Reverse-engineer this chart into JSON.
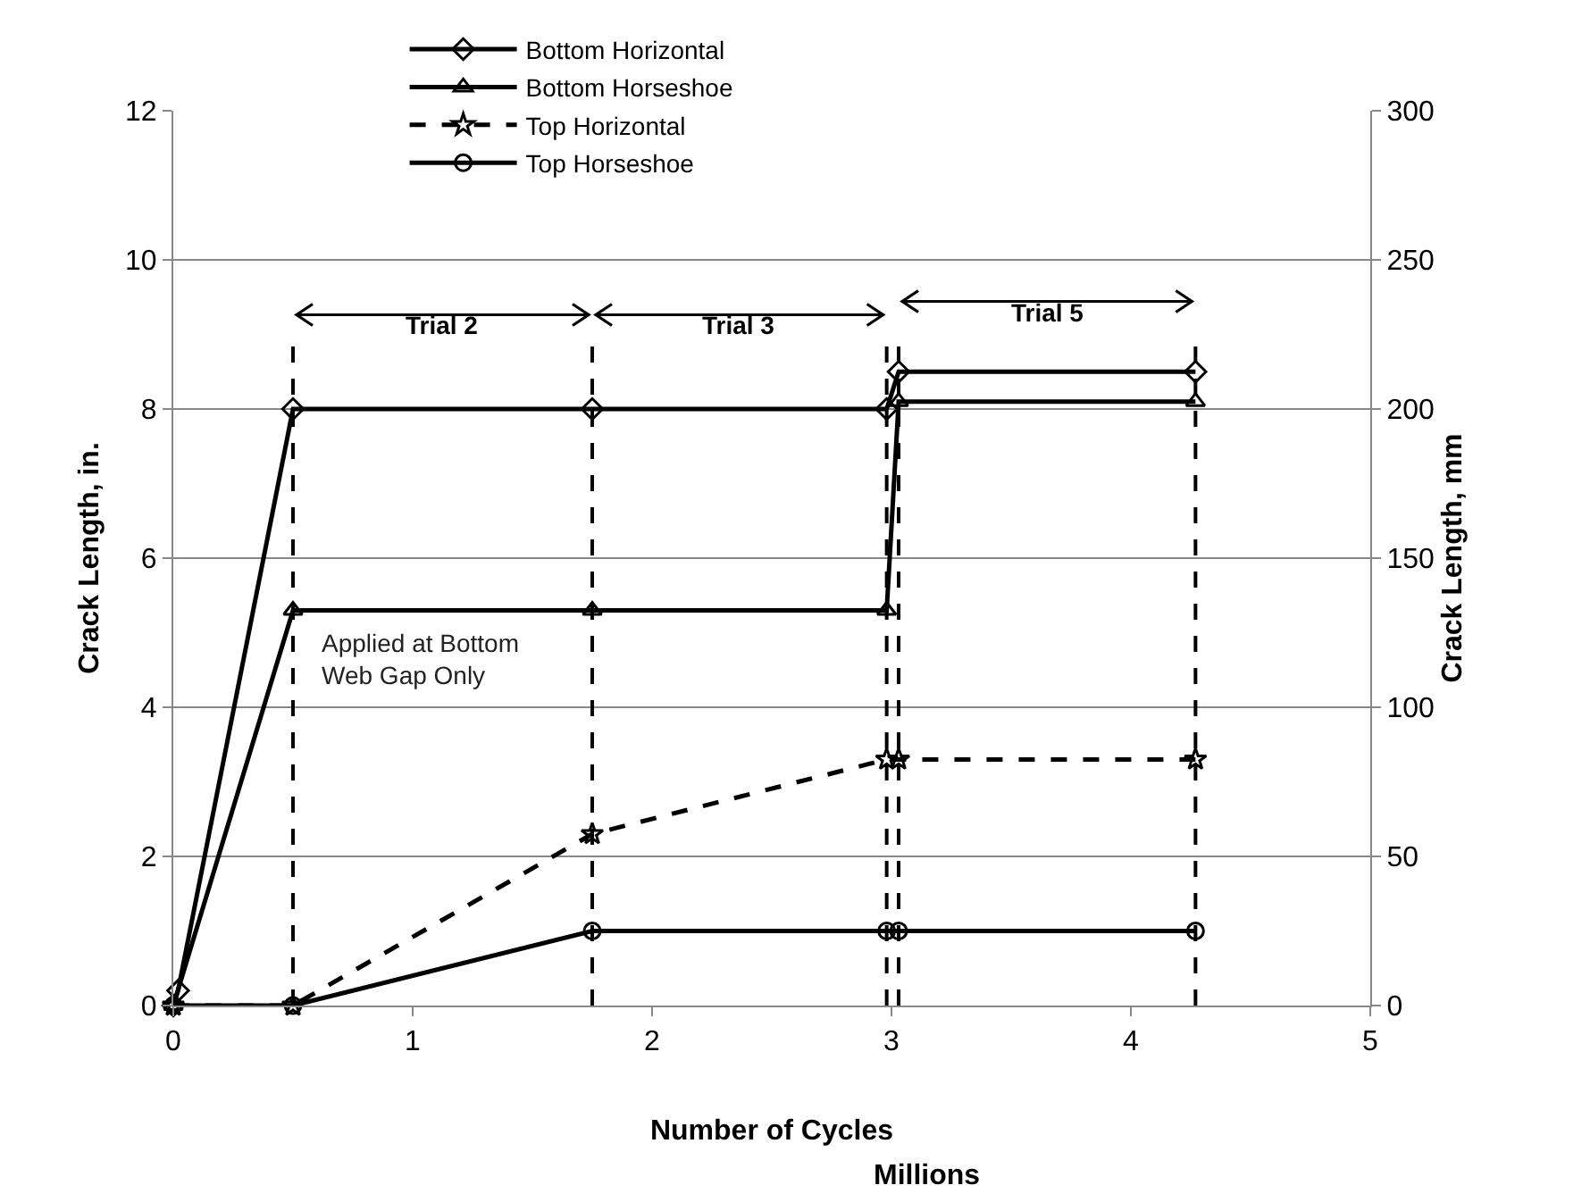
{
  "chart_data": {
    "type": "line",
    "xlabel": "Number of Cycles",
    "ylabel": "Crack Length, in.",
    "y2label": "Crack Length, mm",
    "xlim": [
      0,
      5
    ],
    "xticks": [
      0,
      1,
      2,
      3,
      4,
      5
    ],
    "ylim": [
      0,
      12
    ],
    "yticks": [
      0,
      2,
      4,
      6,
      8,
      10,
      12
    ],
    "y2lim": [
      0,
      300
    ],
    "y2ticks": [
      0,
      50,
      100,
      150,
      200,
      250,
      300
    ],
    "grid": "y",
    "legend": "top",
    "series": [
      {
        "name": "Bottom Horizontal",
        "color": "#000000",
        "marker": "diamond",
        "line_style": "solid",
        "x": [
          0,
          0.02,
          0.5,
          1.75,
          2.98,
          3.03,
          4.27
        ],
        "values": [
          0,
          0.2,
          8,
          8,
          8,
          8.5,
          8.5
        ]
      },
      {
        "name": "Bottom Horseshoe",
        "color": "#000000",
        "marker": "triangle",
        "line_style": "solid",
        "x": [
          0,
          0.5,
          1.75,
          2.98,
          3.03,
          4.27
        ],
        "values": [
          0,
          5.3,
          5.3,
          5.3,
          8.1,
          8.1
        ]
      },
      {
        "name": "Top Horizontal",
        "color": "#000000",
        "marker": "star",
        "line_style": "dashed",
        "x": [
          0,
          0.5,
          1.75,
          2.98,
          3.03,
          4.27
        ],
        "values": [
          0,
          0,
          2.3,
          3.3,
          3.3,
          3.3
        ]
      },
      {
        "name": "Top Horseshoe",
        "color": "#000000",
        "marker": "circle",
        "line_style": "solid",
        "x": [
          0,
          0.5,
          1.75,
          2.98,
          3.03,
          4.27
        ],
        "values": [
          0,
          0,
          1,
          1,
          1,
          1
        ]
      }
    ],
    "ref_lines": [
      {
        "axis": "x",
        "value": 0.5,
        "color": "#000000",
        "line_style": "dashed"
      },
      {
        "axis": "x",
        "value": 1.75,
        "color": "#000000",
        "line_style": "dashed"
      },
      {
        "axis": "x",
        "value": 2.98,
        "color": "#000000",
        "line_style": "dashed"
      },
      {
        "axis": "x",
        "value": 3.03,
        "color": "#000000",
        "line_style": "dashed"
      },
      {
        "axis": "x",
        "value": 4.27,
        "color": "#000000",
        "line_style": "dashed"
      }
    ],
    "annotations": [
      "Trial 2",
      "Trial 3",
      "Trial 5",
      {
        "text": "Applied at Bottom Web Gap Only",
        "x": 0.5,
        "y": 5.3
      },
      "Millions"
    ]
  }
}
